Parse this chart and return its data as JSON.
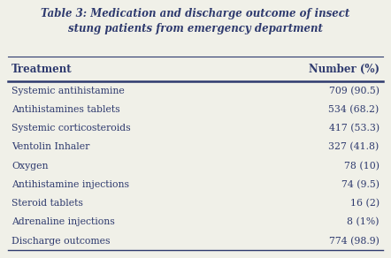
{
  "title_line1": "Table 3: Medication and discharge outcome of insect",
  "title_line2": "stung patients from emergency department",
  "col1_header": "Treatment",
  "col2_header": "Number (%)",
  "rows": [
    [
      "Systemic antihistamine",
      "709 (90.5)"
    ],
    [
      "Antihistamines tablets",
      "534 (68.2)"
    ],
    [
      "Systemic corticosteroids",
      "417 (53.3)"
    ],
    [
      "Ventolin Inhaler",
      "327 (41.8)"
    ],
    [
      "Oxygen",
      "78 (10)"
    ],
    [
      "Antihistamine injections",
      "74 (9.5)"
    ],
    [
      "Steroid tablets",
      "16 (2)"
    ],
    [
      "Adrenaline injections",
      "8 (1%)"
    ],
    [
      "Discharge outcomes",
      "774 (98.9)"
    ]
  ],
  "bg_color": "#f0f0e8",
  "text_color": "#2e3a6e",
  "title_color": "#2e3a6e",
  "header_color": "#2e3a6e",
  "line_color": "#2e3a6e",
  "title_fontsize": 8.5,
  "header_fontsize": 8.5,
  "row_fontsize": 7.8
}
